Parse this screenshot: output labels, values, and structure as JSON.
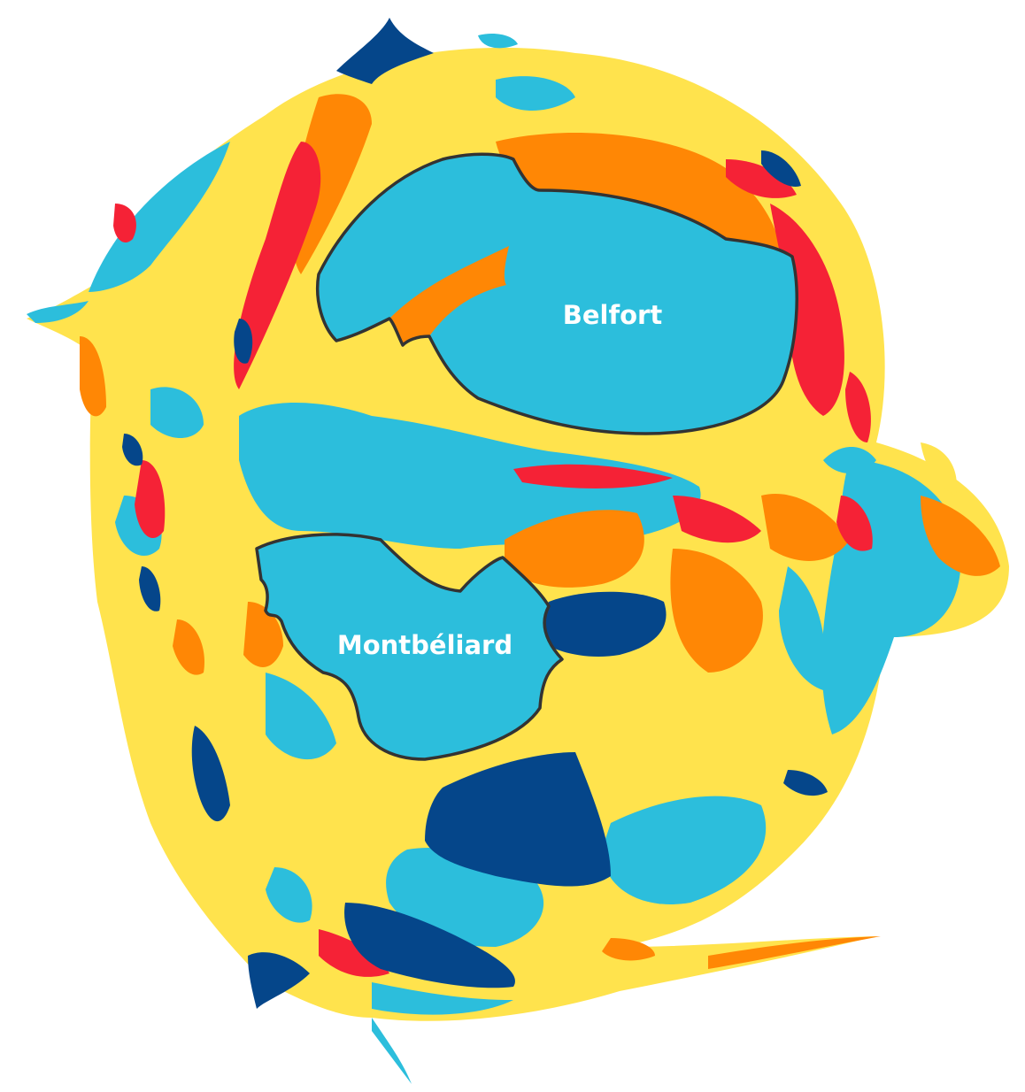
{
  "map": {
    "labels": {
      "belfort": "Belfort",
      "montbeliard": "Montbéliard"
    },
    "palette": {
      "dark_blue": "#05468a",
      "light_blue": "#2cbedc",
      "yellow": "#ffe34d",
      "orange": "#ff8705",
      "red": "#f52236"
    }
  }
}
